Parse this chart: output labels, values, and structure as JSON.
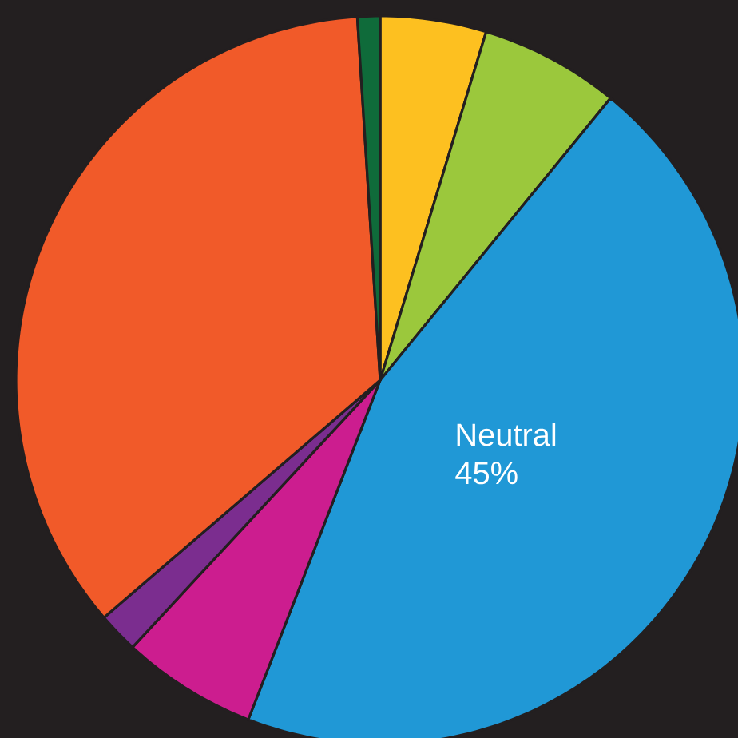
{
  "chart_data": {
    "type": "pie",
    "categories": [
      null,
      null,
      "Neutral",
      null,
      null,
      null,
      null
    ],
    "values": [
      4.7,
      6.2,
      45,
      6,
      1.8,
      35.3,
      1
    ],
    "value_labels": [
      null,
      null,
      "45%",
      null,
      null,
      null,
      null
    ],
    "colors": [
      "#fdc020",
      "#9bc83c",
      "#2098d6",
      "#cc1d8f",
      "#7b2d8f",
      "#f15a29",
      "#0f6b3a"
    ]
  }
}
